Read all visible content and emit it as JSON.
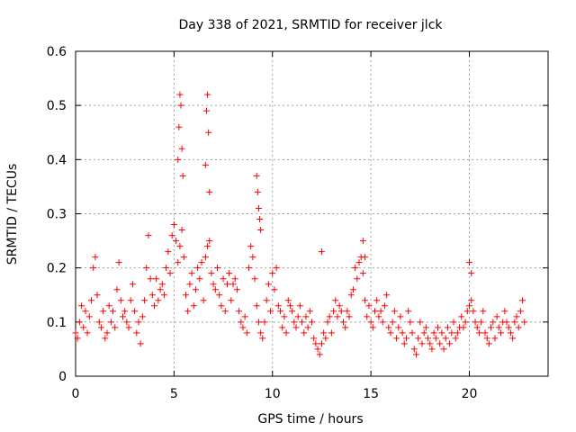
{
  "chart_data": {
    "type": "scatter",
    "title": "Day 338 of 2021, SRMTID for receiver jlck",
    "xlabel": "GPS time / hours",
    "ylabel": "SRMTID / TECUs",
    "xlim": [
      0,
      24
    ],
    "ylim": [
      0,
      0.6
    ],
    "xticks": [
      0,
      5,
      10,
      15,
      20
    ],
    "yticks": [
      0,
      0.1,
      0.2,
      0.3,
      0.4,
      0.5,
      0.6
    ],
    "xtick_labels": [
      "0",
      "5",
      "10",
      "15",
      "20"
    ],
    "ytick_labels": [
      "0",
      "0.1",
      "0.2",
      "0.3",
      "0.4",
      "0.5",
      "0.6"
    ],
    "grid": true,
    "marker": "+",
    "color": "#ff0000",
    "series": [
      {
        "name": "SRMTID",
        "x": [
          0.0,
          0.1,
          0.2,
          0.3,
          0.4,
          0.5,
          0.6,
          0.7,
          0.8,
          0.9,
          1.0,
          1.1,
          1.2,
          1.3,
          1.4,
          1.5,
          1.6,
          1.7,
          1.8,
          1.9,
          2.0,
          2.1,
          2.2,
          2.3,
          2.4,
          2.5,
          2.6,
          2.7,
          2.8,
          2.9,
          3.0,
          3.1,
          3.2,
          3.3,
          3.4,
          3.5,
          3.6,
          3.7,
          3.8,
          3.9,
          4.0,
          4.1,
          4.2,
          4.3,
          4.4,
          4.5,
          4.6,
          4.7,
          4.8,
          4.9,
          5.0,
          5.1,
          5.2,
          5.3,
          5.4,
          5.5,
          5.6,
          5.7,
          5.8,
          5.9,
          6.0,
          6.1,
          6.2,
          6.3,
          6.4,
          6.5,
          6.6,
          6.7,
          6.8,
          6.9,
          7.0,
          7.1,
          7.2,
          7.3,
          7.4,
          7.5,
          7.6,
          7.7,
          7.8,
          7.9,
          8.0,
          8.1,
          8.2,
          8.3,
          8.4,
          8.5,
          8.6,
          8.7,
          8.8,
          8.9,
          9.0,
          9.1,
          9.2,
          9.3,
          9.4,
          9.5,
          9.6,
          9.7,
          9.8,
          9.9,
          10.0,
          10.1,
          10.2,
          10.3,
          10.4,
          10.5,
          10.6,
          10.7,
          10.8,
          10.9,
          11.0,
          11.1,
          11.2,
          11.3,
          11.4,
          11.5,
          11.6,
          11.7,
          11.8,
          11.9,
          12.0,
          12.1,
          12.2,
          12.3,
          12.4,
          12.5,
          12.6,
          12.7,
          12.8,
          12.9,
          13.0,
          13.1,
          13.2,
          13.3,
          13.4,
          13.5,
          13.6,
          13.7,
          13.8,
          13.9,
          14.0,
          14.1,
          14.2,
          14.3,
          14.4,
          14.5,
          14.6,
          14.7,
          14.8,
          14.9,
          15.0,
          15.1,
          15.2,
          15.3,
          15.4,
          15.5,
          15.6,
          15.7,
          15.8,
          15.9,
          16.0,
          16.1,
          16.2,
          16.3,
          16.4,
          16.5,
          16.6,
          16.7,
          16.8,
          16.9,
          17.0,
          17.1,
          17.2,
          17.3,
          17.4,
          17.5,
          17.6,
          17.7,
          17.8,
          17.9,
          18.0,
          18.1,
          18.2,
          18.3,
          18.4,
          18.5,
          18.6,
          18.7,
          18.8,
          18.9,
          19.0,
          19.1,
          19.2,
          19.3,
          19.4,
          19.5,
          19.6,
          19.7,
          19.8,
          19.9,
          20.0,
          20.1,
          20.2,
          20.3,
          20.4,
          20.5,
          20.6,
          20.7,
          20.8,
          20.9,
          21.0,
          21.1,
          21.2,
          21.3,
          21.4,
          21.5,
          21.6,
          21.7,
          21.8,
          21.9,
          22.0,
          22.1,
          22.2,
          22.3,
          22.4,
          22.5,
          22.6,
          22.7,
          22.8,
          5.2,
          5.25,
          5.3,
          5.35,
          5.4,
          5.45,
          6.6,
          6.65,
          6.7,
          6.75,
          6.8,
          9.2,
          9.25,
          9.3,
          9.35,
          9.4,
          12.5,
          14.6,
          14.7,
          20.0,
          20.1
        ],
        "y": [
          0.08,
          0.07,
          0.1,
          0.13,
          0.09,
          0.12,
          0.08,
          0.11,
          0.14,
          0.2,
          0.22,
          0.15,
          0.1,
          0.09,
          0.12,
          0.07,
          0.08,
          0.13,
          0.1,
          0.12,
          0.09,
          0.16,
          0.21,
          0.14,
          0.11,
          0.12,
          0.1,
          0.09,
          0.14,
          0.17,
          0.12,
          0.08,
          0.1,
          0.06,
          0.11,
          0.14,
          0.2,
          0.26,
          0.18,
          0.15,
          0.13,
          0.18,
          0.14,
          0.16,
          0.17,
          0.15,
          0.2,
          0.23,
          0.19,
          0.26,
          0.28,
          0.25,
          0.21,
          0.24,
          0.27,
          0.22,
          0.15,
          0.12,
          0.17,
          0.19,
          0.13,
          0.16,
          0.2,
          0.18,
          0.21,
          0.14,
          0.22,
          0.24,
          0.25,
          0.19,
          0.17,
          0.16,
          0.2,
          0.15,
          0.13,
          0.18,
          0.12,
          0.17,
          0.19,
          0.14,
          0.17,
          0.18,
          0.16,
          0.12,
          0.1,
          0.09,
          0.11,
          0.08,
          0.2,
          0.24,
          0.22,
          0.18,
          0.13,
          0.1,
          0.08,
          0.07,
          0.1,
          0.14,
          0.17,
          0.12,
          0.19,
          0.16,
          0.2,
          0.13,
          0.12,
          0.09,
          0.11,
          0.08,
          0.14,
          0.13,
          0.12,
          0.1,
          0.09,
          0.11,
          0.13,
          0.1,
          0.08,
          0.11,
          0.09,
          0.12,
          0.1,
          0.07,
          0.06,
          0.05,
          0.04,
          0.06,
          0.08,
          0.07,
          0.1,
          0.11,
          0.08,
          0.12,
          0.14,
          0.11,
          0.13,
          0.12,
          0.1,
          0.09,
          0.12,
          0.11,
          0.15,
          0.16,
          0.2,
          0.18,
          0.21,
          0.22,
          0.19,
          0.14,
          0.11,
          0.13,
          0.1,
          0.09,
          0.12,
          0.14,
          0.11,
          0.12,
          0.1,
          0.13,
          0.15,
          0.09,
          0.08,
          0.1,
          0.12,
          0.07,
          0.09,
          0.11,
          0.08,
          0.06,
          0.07,
          0.12,
          0.1,
          0.08,
          0.05,
          0.04,
          0.07,
          0.1,
          0.06,
          0.08,
          0.09,
          0.07,
          0.06,
          0.05,
          0.08,
          0.07,
          0.09,
          0.06,
          0.08,
          0.05,
          0.07,
          0.09,
          0.06,
          0.08,
          0.1,
          0.07,
          0.08,
          0.09,
          0.11,
          0.09,
          0.1,
          0.12,
          0.13,
          0.14,
          0.12,
          0.1,
          0.09,
          0.08,
          0.1,
          0.12,
          0.08,
          0.07,
          0.06,
          0.09,
          0.1,
          0.07,
          0.11,
          0.09,
          0.08,
          0.1,
          0.12,
          0.1,
          0.09,
          0.08,
          0.07,
          0.1,
          0.11,
          0.09,
          0.12,
          0.14,
          0.1,
          0.4,
          0.46,
          0.52,
          0.5,
          0.42,
          0.37,
          0.39,
          0.49,
          0.52,
          0.45,
          0.34,
          0.37,
          0.34,
          0.31,
          0.29,
          0.27,
          0.23,
          0.25,
          0.22,
          0.21,
          0.19
        ]
      }
    ]
  }
}
